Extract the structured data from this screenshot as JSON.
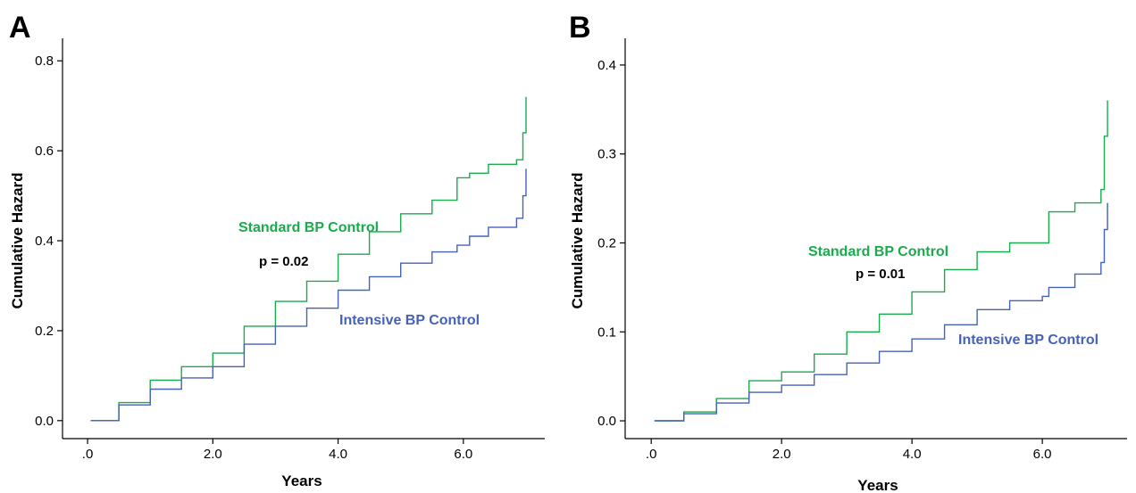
{
  "colors": {
    "standard": "#1aab4d",
    "intensive": "#4662b8",
    "axis": "#000000"
  },
  "chart_data": [
    {
      "type": "line",
      "panel_label": "A",
      "xlabel": "Years",
      "ylabel": "Cumulative Hazard",
      "xlim": [
        -0.4,
        7.3
      ],
      "ylim": [
        -0.04,
        0.85
      ],
      "xticks": [
        0,
        2,
        4,
        6
      ],
      "xtick_labels": [
        ".0",
        "2.0",
        "4.0",
        "6.0"
      ],
      "yticks": [
        0.0,
        0.2,
        0.4,
        0.6,
        0.8
      ],
      "ytick_labels": [
        "0.0",
        "0.2",
        "0.4",
        "0.6",
        "0.8"
      ],
      "grid": false,
      "p_value": "p = 0.02",
      "series": [
        {
          "name": "Standard BP Control",
          "color_key": "standard",
          "x": [
            0.05,
            0.5,
            1.0,
            1.5,
            2.0,
            2.5,
            3.0,
            3.5,
            4.0,
            4.5,
            5.0,
            5.5,
            5.9,
            6.1,
            6.4,
            6.85,
            6.95,
            7.0
          ],
          "y": [
            0.0,
            0.04,
            0.09,
            0.12,
            0.15,
            0.21,
            0.265,
            0.31,
            0.37,
            0.42,
            0.46,
            0.49,
            0.54,
            0.55,
            0.57,
            0.58,
            0.64,
            0.72
          ]
        },
        {
          "name": "Intensive BP Control",
          "color_key": "intensive",
          "x": [
            0.05,
            0.5,
            1.0,
            1.5,
            2.0,
            2.5,
            3.0,
            3.5,
            4.0,
            4.5,
            5.0,
            5.5,
            5.9,
            6.1,
            6.4,
            6.85,
            6.95,
            7.0
          ],
          "y": [
            0.0,
            0.035,
            0.07,
            0.095,
            0.12,
            0.17,
            0.21,
            0.25,
            0.29,
            0.32,
            0.35,
            0.375,
            0.39,
            0.41,
            0.43,
            0.45,
            0.5,
            0.56
          ]
        }
      ]
    },
    {
      "type": "line",
      "panel_label": "B",
      "xlabel": "Years",
      "ylabel": "Cumulative Hazard",
      "xlim": [
        -0.4,
        7.3
      ],
      "ylim": [
        -0.02,
        0.43
      ],
      "xticks": [
        0,
        2,
        4,
        6
      ],
      "xtick_labels": [
        ".0",
        "2.0",
        "4.0",
        "6.0"
      ],
      "yticks": [
        0.0,
        0.1,
        0.2,
        0.3,
        0.4
      ],
      "ytick_labels": [
        "0.0",
        "0.1",
        "0.2",
        "0.3",
        "0.4"
      ],
      "grid": false,
      "p_value": "p = 0.01",
      "series": [
        {
          "name": "Standard BP Control",
          "color_key": "standard",
          "x": [
            0.05,
            0.5,
            1.0,
            1.5,
            2.0,
            2.5,
            3.0,
            3.5,
            4.0,
            4.5,
            5.0,
            5.5,
            6.0,
            6.1,
            6.5,
            6.9,
            6.95,
            7.0
          ],
          "y": [
            0.0,
            0.01,
            0.025,
            0.045,
            0.055,
            0.075,
            0.1,
            0.12,
            0.145,
            0.17,
            0.19,
            0.2,
            0.2,
            0.235,
            0.245,
            0.26,
            0.32,
            0.36
          ]
        },
        {
          "name": "Intensive BP Control",
          "color_key": "intensive",
          "x": [
            0.05,
            0.5,
            1.0,
            1.5,
            2.0,
            2.5,
            3.0,
            3.5,
            4.0,
            4.5,
            5.0,
            5.5,
            6.0,
            6.1,
            6.5,
            6.9,
            6.95,
            7.0
          ],
          "y": [
            0.0,
            0.008,
            0.02,
            0.032,
            0.04,
            0.052,
            0.065,
            0.078,
            0.092,
            0.108,
            0.125,
            0.135,
            0.14,
            0.15,
            0.165,
            0.178,
            0.215,
            0.245
          ]
        }
      ]
    }
  ]
}
